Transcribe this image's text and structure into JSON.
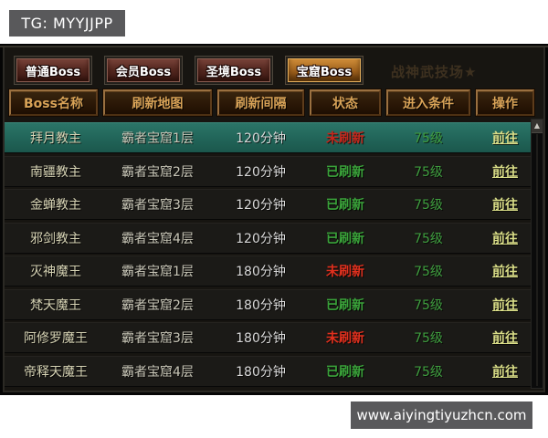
{
  "page": {
    "tg_label": "TG: MYYJJPP",
    "site_label": "www.aiyingtiyuzhcn.com"
  },
  "tabs": [
    {
      "label": "普通Boss",
      "active": false
    },
    {
      "label": "会员Boss",
      "active": false
    },
    {
      "label": "圣境Boss",
      "active": false
    },
    {
      "label": "宝窟Boss",
      "active": true
    }
  ],
  "watermark_text": "战神武技场★",
  "table": {
    "headers": [
      "Boss名称",
      "刷新地图",
      "刷新间隔",
      "状态",
      "进入条件",
      "操作"
    ],
    "rows": [
      {
        "name": "拜月教主",
        "map": "霸者宝窟1层",
        "interval": "120分钟",
        "status": "未刷新",
        "status_type": "red",
        "condition": "75级",
        "action": "前往",
        "selected": true
      },
      {
        "name": "南疆教主",
        "map": "霸者宝窟2层",
        "interval": "120分钟",
        "status": "已刷新",
        "status_type": "green",
        "condition": "75级",
        "action": "前往",
        "selected": false
      },
      {
        "name": "金蝉教主",
        "map": "霸者宝窟3层",
        "interval": "120分钟",
        "status": "已刷新",
        "status_type": "green",
        "condition": "75级",
        "action": "前往",
        "selected": false
      },
      {
        "name": "邪剑教主",
        "map": "霸者宝窟4层",
        "interval": "120分钟",
        "status": "已刷新",
        "status_type": "green",
        "condition": "75级",
        "action": "前往",
        "selected": false
      },
      {
        "name": "灭神魔王",
        "map": "霸者宝窟1层",
        "interval": "180分钟",
        "status": "未刷新",
        "status_type": "red",
        "condition": "75级",
        "action": "前往",
        "selected": false
      },
      {
        "name": "梵天魔王",
        "map": "霸者宝窟2层",
        "interval": "180分钟",
        "status": "已刷新",
        "status_type": "green",
        "condition": "75级",
        "action": "前往",
        "selected": false
      },
      {
        "name": "阿修罗魔王",
        "map": "霸者宝窟3层",
        "interval": "180分钟",
        "status": "未刷新",
        "status_type": "red",
        "condition": "75级",
        "action": "前往",
        "selected": false
      },
      {
        "name": "帝释天魔王",
        "map": "霸者宝窟4层",
        "interval": "180分钟",
        "status": "已刷新",
        "status_type": "green",
        "condition": "75级",
        "action": "前往",
        "selected": false
      }
    ]
  },
  "scrollbar": {
    "up_arrow": "▲"
  },
  "colors": {
    "badge-bg": "#59595b",
    "header-text": "#d9a357",
    "status-red": "#e0301e",
    "status-green": "#3aa33a",
    "level-green": "#3f9e3f",
    "action-yellow": "#dade88",
    "selected-row-teal": "#216458",
    "active-tab-gold": "#d3903a"
  }
}
